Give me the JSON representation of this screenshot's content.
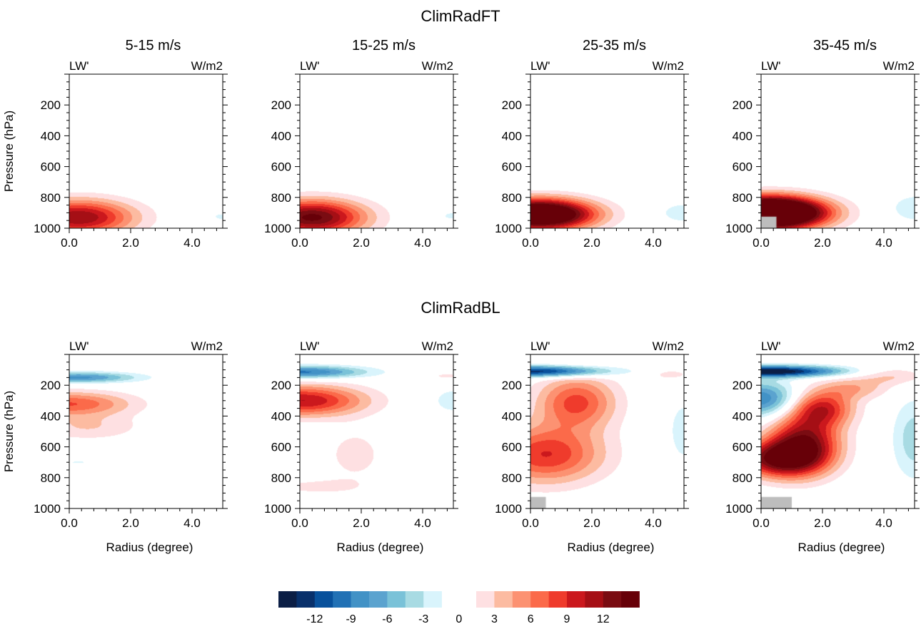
{
  "chart_data": {
    "type": "heatmap",
    "subtype": "filled-contour",
    "rows": [
      {
        "title": "ClimRadFT"
      },
      {
        "title": "ClimRadBL"
      }
    ],
    "column_titles": [
      "5-15 m/s",
      "15-25 m/s",
      "25-35 m/s",
      "35-45 m/s"
    ],
    "panel_left_label": "LW'",
    "panel_right_label": "W/m2",
    "xlabel": "Radius (degree)",
    "ylabel": "Pressure (hPa)",
    "xlim": [
      0,
      5
    ],
    "ylim": [
      1000,
      0
    ],
    "x_ticks": [
      "0.0",
      "2.0",
      "4.0"
    ],
    "y_ticks": [
      "200",
      "400",
      "600",
      "800",
      "1000"
    ],
    "colorbar": {
      "levels_negative": [
        -13.5,
        -12,
        -10.5,
        -9,
        -7.5,
        -6,
        -4.5,
        -3,
        -1.5
      ],
      "levels_positive": [
        1.5,
        3,
        4.5,
        6,
        7.5,
        9,
        10.5,
        12,
        13.5
      ],
      "labels": [
        "-12",
        "-9",
        "-6",
        "-3",
        "0",
        "3",
        "6",
        "9",
        "12"
      ],
      "colors_negative": [
        "#0b1e45",
        "#08306b",
        "#08519c",
        "#2171b5",
        "#4292c6",
        "#5ba3cf",
        "#7ac2d8",
        "#a8dbe3",
        "#d9f4fc"
      ],
      "colors_positive": [
        "#fee0e2",
        "#fcbba1",
        "#fc9272",
        "#fb6a4a",
        "#ef3b2c",
        "#cb181d",
        "#a50f15",
        "#7a0c12",
        "#670008"
      ]
    },
    "mask_color": "#bdbdbd",
    "panels": [
      {
        "row": 0,
        "col": 0,
        "features": [
          {
            "radius": 0.3,
            "pressure": 930,
            "peak": 12,
            "spread_radius": 1.25,
            "spread_pressure": 80
          },
          {
            "radius": 5.0,
            "pressure": 925,
            "peak": -2,
            "spread_radius": 0.3,
            "spread_pressure": 20
          }
        ],
        "mask": null
      },
      {
        "row": 0,
        "col": 1,
        "features": [
          {
            "radius": 0.4,
            "pressure": 930,
            "peak": 14,
            "spread_radius": 1.2,
            "spread_pressure": 80
          },
          {
            "radius": 5.0,
            "pressure": 920,
            "peak": -2,
            "spread_radius": 0.35,
            "spread_pressure": 22
          }
        ],
        "mask": null
      },
      {
        "row": 0,
        "col": 2,
        "features": [
          {
            "radius": 0.3,
            "pressure": 910,
            "peak": 22,
            "spread_radius": 1.2,
            "spread_pressure": 68
          },
          {
            "radius": 5.0,
            "pressure": 900,
            "peak": -2.5,
            "spread_radius": 0.6,
            "spread_pressure": 50
          }
        ],
        "mask": null
      },
      {
        "row": 0,
        "col": 3,
        "features": [
          {
            "radius": 0.3,
            "pressure": 900,
            "peak": 30,
            "spread_radius": 1.2,
            "spread_pressure": 70
          },
          {
            "radius": 5.1,
            "pressure": 870,
            "peak": -2.6,
            "spread_radius": 0.7,
            "spread_pressure": 70
          }
        ],
        "mask": {
          "radius": [
            0,
            0.5
          ],
          "pressure": [
            925,
            1000
          ]
        }
      },
      {
        "row": 1,
        "col": 0,
        "features": [
          {
            "radius": 0.3,
            "pressure": 150,
            "peak": -8,
            "spread_radius": 1.3,
            "spread_pressure": 24
          },
          {
            "radius": 0.0,
            "pressure": 320,
            "peak": 7.5,
            "spread_radius": 1.4,
            "spread_pressure": 55
          },
          {
            "radius": 0.6,
            "pressure": 470,
            "peak": 3,
            "spread_radius": 1.2,
            "spread_pressure": 60
          },
          {
            "radius": 0.3,
            "pressure": 700,
            "peak": -1.8,
            "spread_radius": 0.3,
            "spread_pressure": 8
          }
        ],
        "mask": null
      },
      {
        "row": 1,
        "col": 1,
        "features": [
          {
            "radius": 0.1,
            "pressure": 115,
            "peak": -9.5,
            "spread_radius": 1.4,
            "spread_pressure": 28
          },
          {
            "radius": 0.1,
            "pressure": 300,
            "peak": 10.5,
            "spread_radius": 1.4,
            "spread_pressure": 70
          },
          {
            "radius": 1.8,
            "pressure": 650,
            "peak": 2,
            "spread_radius": 0.8,
            "spread_pressure": 140
          },
          {
            "radius": 0.4,
            "pressure": 860,
            "peak": 1.8,
            "spread_radius": 1.2,
            "spread_pressure": 40
          },
          {
            "radius": 4.8,
            "pressure": 140,
            "peak": 2,
            "spread_radius": 0.4,
            "spread_pressure": 15
          },
          {
            "radius": 5.0,
            "pressure": 300,
            "peak": -2.5,
            "spread_radius": 0.5,
            "spread_pressure": 60
          }
        ],
        "mask": null
      },
      {
        "row": 1,
        "col": 2,
        "features": [
          {
            "radius": 0.3,
            "pressure": 110,
            "peak": -13,
            "spread_radius": 1.5,
            "spread_pressure": 25
          },
          {
            "radius": 1.5,
            "pressure": 310,
            "peak": 8,
            "spread_radius": 0.9,
            "spread_pressure": 120
          },
          {
            "radius": 0.5,
            "pressure": 650,
            "peak": 9,
            "spread_radius": 1.3,
            "spread_pressure": 130
          },
          {
            "radius": 4.6,
            "pressure": 130,
            "peak": 2.5,
            "spread_radius": 0.5,
            "spread_pressure": 25
          },
          {
            "radius": 5.0,
            "pressure": 500,
            "peak": -2,
            "spread_radius": 0.5,
            "spread_pressure": 200
          }
        ],
        "mask": {
          "radius": [
            0,
            0.5
          ],
          "pressure": [
            925,
            1000
          ]
        }
      },
      {
        "row": 1,
        "col": 3,
        "features": [
          {
            "radius": 0.4,
            "pressure": 110,
            "peak": -15,
            "spread_radius": 1.5,
            "spread_pressure": 25
          },
          {
            "radius": 0.0,
            "pressure": 290,
            "peak": -9,
            "spread_radius": 0.8,
            "spread_pressure": 80
          },
          {
            "radius": 0.5,
            "pressure": 680,
            "peak": 12,
            "spread_radius": 0.9,
            "spread_pressure": 80
          },
          {
            "radius": 1.4,
            "pressure": 580,
            "peak": 13,
            "spread_radius": 0.8,
            "spread_pressure": 130
          },
          {
            "radius": 2.0,
            "pressure": 350,
            "peak": 9,
            "spread_radius": 0.7,
            "spread_pressure": 80
          },
          {
            "radius": 3.0,
            "pressure": 220,
            "peak": 4,
            "spread_radius": 0.8,
            "spread_pressure": 50
          },
          {
            "radius": 4.3,
            "pressure": 140,
            "peak": 3,
            "spread_radius": 0.8,
            "spread_pressure": 40
          },
          {
            "radius": 5.0,
            "pressure": 550,
            "peak": -4,
            "spread_radius": 0.5,
            "spread_pressure": 180
          }
        ],
        "mask": {
          "radius": [
            0,
            1.0
          ],
          "pressure": [
            925,
            1000
          ]
        }
      }
    ]
  }
}
